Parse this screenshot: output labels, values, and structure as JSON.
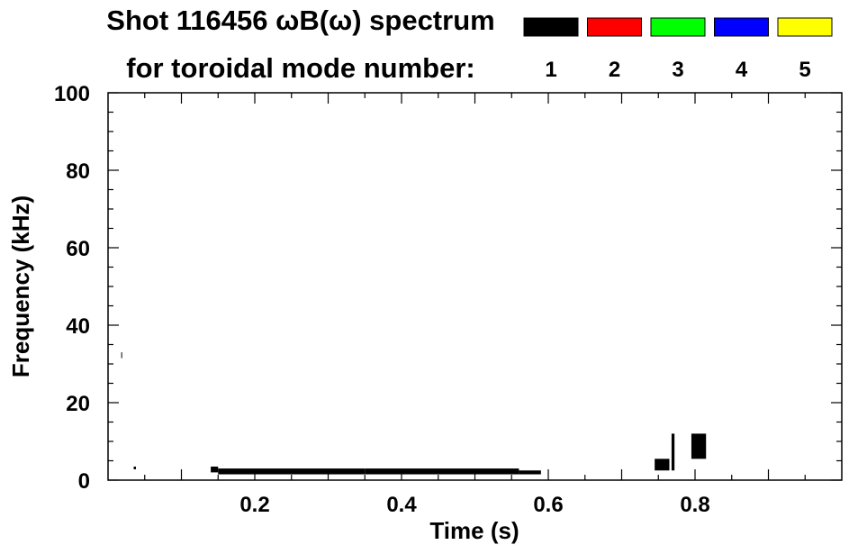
{
  "header": {
    "title": "Shot 116456 ωB(ω) spectrum",
    "subtitle": "for toroidal mode number:"
  },
  "legend": {
    "items": [
      {
        "label": "1",
        "color": "#000000"
      },
      {
        "label": "2",
        "color": "#ff0000"
      },
      {
        "label": "3",
        "color": "#00ff00"
      },
      {
        "label": "4",
        "color": "#0000ff"
      },
      {
        "label": "5",
        "color": "#ffff00"
      }
    ]
  },
  "chart_data": {
    "type": "heatmap",
    "title": "Shot 116456 ωB(ω) spectrum",
    "xlabel": "Time (s)",
    "ylabel": "Frequency (kHz)",
    "xlim": [
      0.0,
      1.0
    ],
    "ylim": [
      0,
      100
    ],
    "x_ticks": [
      0.2,
      0.4,
      0.6,
      0.8
    ],
    "x_tick_labels": [
      "0.2",
      "0.4",
      "0.6",
      "0.8"
    ],
    "y_ticks": [
      0,
      20,
      40,
      60,
      80,
      100
    ],
    "y_tick_labels": [
      "0",
      "20",
      "40",
      "60",
      "80",
      "100"
    ],
    "grid": false,
    "legend_position": "top-right",
    "series": [
      {
        "mode": 1,
        "color": "#000000",
        "segments": [
          {
            "t_start": 0.018,
            "t_end": 0.019,
            "f_low": 31.5,
            "f_high": 33.0
          },
          {
            "t_start": 0.035,
            "t_end": 0.038,
            "f_low": 2.8,
            "f_high": 3.5
          },
          {
            "t_start": 0.14,
            "t_end": 0.15,
            "f_low": 2.0,
            "f_high": 3.5
          },
          {
            "t_start": 0.15,
            "t_end": 0.35,
            "f_low": 1.5,
            "f_high": 3.0
          },
          {
            "t_start": 0.35,
            "t_end": 0.56,
            "f_low": 1.5,
            "f_high": 3.0
          },
          {
            "t_start": 0.56,
            "t_end": 0.59,
            "f_low": 1.5,
            "f_high": 2.5
          },
          {
            "t_start": 0.745,
            "t_end": 0.765,
            "f_low": 2.5,
            "f_high": 5.5
          },
          {
            "t_start": 0.768,
            "t_end": 0.772,
            "f_low": 2.5,
            "f_high": 12.0
          },
          {
            "t_start": 0.795,
            "t_end": 0.815,
            "f_low": 5.5,
            "f_high": 12.0
          }
        ]
      }
    ]
  }
}
